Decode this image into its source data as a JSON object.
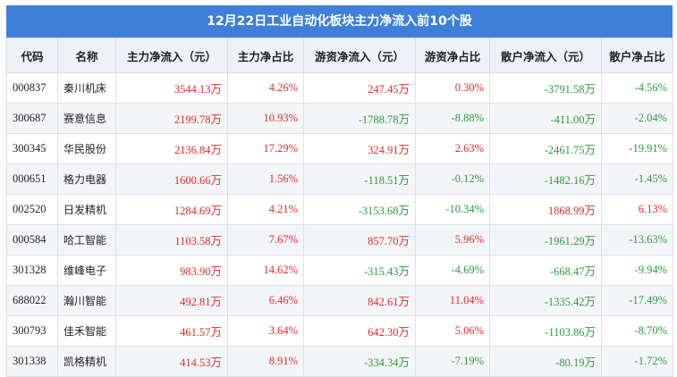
{
  "title": "12月22日工业自动化板块主力净流入前10个股",
  "table": {
    "columns": [
      "代码",
      "名称",
      "主力净流入（元）",
      "主力净占比",
      "游资净流入（元）",
      "游资净占比",
      "散户净流入（元）",
      "散户净占比"
    ],
    "rows": [
      [
        "000837",
        "秦川机床",
        "3544.13万",
        "4.26%",
        "247.45万",
        "0.30%",
        "-3791.58万",
        "-4.56%"
      ],
      [
        "300687",
        "赛意信息",
        "2199.78万",
        "10.93%",
        "-1788.78万",
        "-8.88%",
        "-411.00万",
        "-2.04%"
      ],
      [
        "300345",
        "华民股份",
        "2136.84万",
        "17.29%",
        "324.91万",
        "2.63%",
        "-2461.75万",
        "-19.91%"
      ],
      [
        "000651",
        "格力电器",
        "1600.66万",
        "1.56%",
        "-118.51万",
        "-0.12%",
        "-1482.16万",
        "-1.45%"
      ],
      [
        "002520",
        "日发精机",
        "1284.69万",
        "4.21%",
        "-3153.68万",
        "-10.34%",
        "1868.99万",
        "6.13%"
      ],
      [
        "000584",
        "哈工智能",
        "1103.58万",
        "7.67%",
        "857.70万",
        "5.96%",
        "-1961.29万",
        "-13.63%"
      ],
      [
        "301328",
        "维峰电子",
        "983.90万",
        "14.62%",
        "-315.43万",
        "-4.69%",
        "-668.47万",
        "-9.94%"
      ],
      [
        "688022",
        "瀚川智能",
        "492.81万",
        "6.46%",
        "842.61万",
        "11.04%",
        "-1335.42万",
        "-17.49%"
      ],
      [
        "300793",
        "佳禾智能",
        "461.57万",
        "3.64%",
        "642.30万",
        "5.06%",
        "-1103.86万",
        "-8.70%"
      ],
      [
        "301338",
        "凯格精机",
        "414.53万",
        "8.91%",
        "-334.34万",
        "-7.19%",
        "-80.19万",
        "-1.72%"
      ]
    ]
  }
}
